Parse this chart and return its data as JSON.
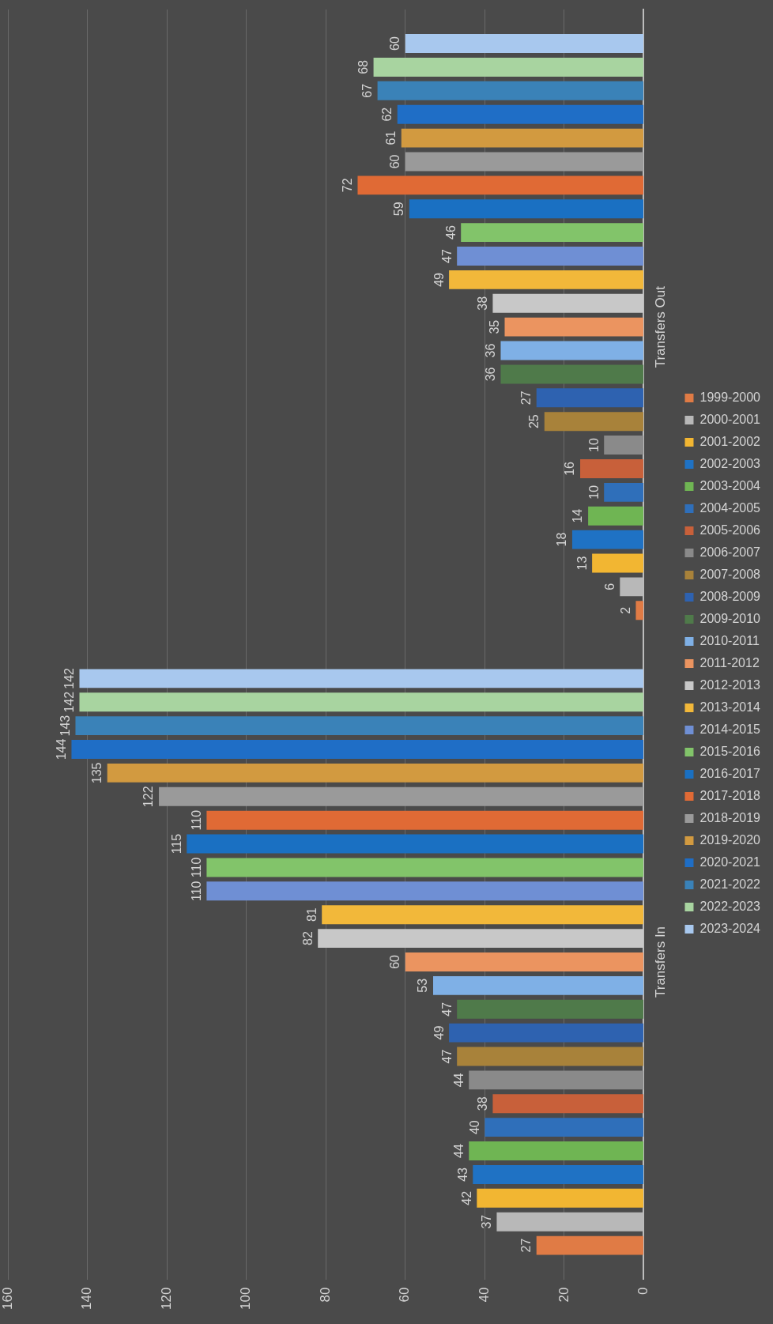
{
  "chart_data": {
    "type": "bar",
    "orientation": "horizontal",
    "categories": [
      "Transfers Out",
      "Transfers In"
    ],
    "series": [
      {
        "name": "1999-2000",
        "color": "#e07b45",
        "values": [
          2,
          27
        ]
      },
      {
        "name": "2000-2001",
        "color": "#b8b8b8",
        "values": [
          6,
          37
        ]
      },
      {
        "name": "2001-2002",
        "color": "#f2b632",
        "values": [
          13,
          42
        ]
      },
      {
        "name": "2002-2003",
        "color": "#1f72c4",
        "values": [
          18,
          43
        ]
      },
      {
        "name": "2003-2004",
        "color": "#6fb553",
        "values": [
          14,
          44
        ]
      },
      {
        "name": "2004-2005",
        "color": "#2f6fba",
        "values": [
          10,
          40
        ]
      },
      {
        "name": "2005-2006",
        "color": "#c8603a",
        "values": [
          16,
          38
        ]
      },
      {
        "name": "2006-2007",
        "color": "#8a8a8a",
        "values": [
          10,
          44
        ]
      },
      {
        "name": "2007-2008",
        "color": "#a8823a",
        "values": [
          25,
          47
        ]
      },
      {
        "name": "2008-2009",
        "color": "#2e62b0",
        "values": [
          27,
          49
        ]
      },
      {
        "name": "2009-2010",
        "color": "#4f7a4a",
        "values": [
          36,
          47
        ]
      },
      {
        "name": "2010-2011",
        "color": "#7fb0e6",
        "values": [
          36,
          53
        ]
      },
      {
        "name": "2011-2012",
        "color": "#eb9460",
        "values": [
          35,
          60
        ]
      },
      {
        "name": "2012-2013",
        "color": "#c8c8c8",
        "values": [
          38,
          82
        ]
      },
      {
        "name": "2013-2014",
        "color": "#f2b83a",
        "values": [
          49,
          81
        ]
      },
      {
        "name": "2014-2015",
        "color": "#6f8fd4",
        "values": [
          47,
          110
        ]
      },
      {
        "name": "2015-2016",
        "color": "#82c46a",
        "values": [
          46,
          110
        ]
      },
      {
        "name": "2016-2017",
        "color": "#1a70c2",
        "values": [
          59,
          115
        ]
      },
      {
        "name": "2017-2018",
        "color": "#e06a35",
        "values": [
          72,
          110
        ]
      },
      {
        "name": "2018-2019",
        "color": "#9a9a9a",
        "values": [
          60,
          122
        ]
      },
      {
        "name": "2019-2020",
        "color": "#d29a40",
        "values": [
          61,
          135
        ]
      },
      {
        "name": "2020-2021",
        "color": "#1f6ec6",
        "values": [
          62,
          144
        ]
      },
      {
        "name": "2021-2022",
        "color": "#3a82b8",
        "values": [
          67,
          143
        ]
      },
      {
        "name": "2022-2023",
        "color": "#a8d4a0",
        "values": [
          68,
          142
        ]
      },
      {
        "name": "2023-2024",
        "color": "#a8c8ee",
        "values": [
          60,
          142
        ]
      }
    ],
    "xlim": [
      160,
      0
    ],
    "xticks": [
      160,
      140,
      120,
      100,
      80,
      60,
      40,
      20,
      0
    ],
    "grid": "x",
    "legend": "right",
    "data_labels": true
  }
}
